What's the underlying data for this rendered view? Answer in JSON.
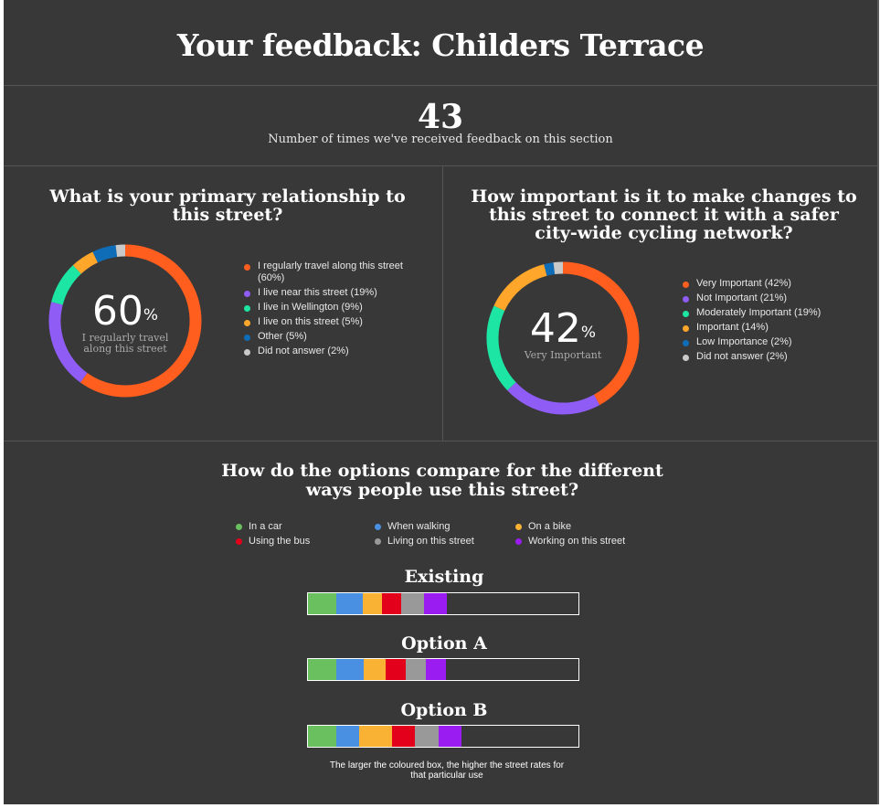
{
  "page": {
    "title": "Your feedback: Childers Terrace",
    "feedback_count": "43",
    "feedback_count_label": "Number of times we've received feedback on this section",
    "footnote": "The larger the coloured box, the higher the street rates for that particular use"
  },
  "chart_data": [
    {
      "type": "pie",
      "title": "What is your primary relationship to this street?",
      "center_value": "60",
      "center_unit": "%",
      "center_label": "I regularly travel along this street",
      "slices": [
        {
          "label": "I regularly travel along this street (60%)",
          "value": 60,
          "color": "#ff5e1f"
        },
        {
          "label": "I live near this street (19%)",
          "value": 19,
          "color": "#8f5cf5"
        },
        {
          "label": "I live in Wellington (9%)",
          "value": 9,
          "color": "#1de5a3"
        },
        {
          "label": "I live on this street (5%)",
          "value": 5,
          "color": "#ffa62b"
        },
        {
          "label": "Other (5%)",
          "value": 5,
          "color": "#0f6db8"
        },
        {
          "label": "Did not answer (2%)",
          "value": 2,
          "color": "#c9c9c9"
        }
      ]
    },
    {
      "type": "pie",
      "title": "How important is it to make changes to this street to connect it with a safer city-wide cycling network?",
      "center_value": "42",
      "center_unit": "%",
      "center_label": "Very Important",
      "slices": [
        {
          "label": "Very Important (42%)",
          "value": 42,
          "color": "#ff5e1f"
        },
        {
          "label": "Not Important (21%)",
          "value": 21,
          "color": "#8f5cf5"
        },
        {
          "label": "Moderately Important (19%)",
          "value": 19,
          "color": "#1de5a3"
        },
        {
          "label": "Important (14%)",
          "value": 14,
          "color": "#ffa62b"
        },
        {
          "label": "Low Importance (2%)",
          "value": 2,
          "color": "#0f6db8"
        },
        {
          "label": "Did not answer (2%)",
          "value": 2,
          "color": "#c9c9c9"
        }
      ]
    },
    {
      "type": "bar",
      "orientation": "stacked-horizontal",
      "title": "How do the options compare for the different ways people use this street?",
      "series": [
        {
          "name": "In a car",
          "color": "#6abf5e"
        },
        {
          "name": "Using the bus",
          "color": "#e3001b"
        },
        {
          "name": "When walking",
          "color": "#4a90e2"
        },
        {
          "name": "Living on this street",
          "color": "#999999"
        },
        {
          "name": "On a bike",
          "color": "#f9b233"
        },
        {
          "name": "Working on this street",
          "color": "#9b1cf0"
        }
      ],
      "legend_order": [
        "In a car",
        "When walking",
        "On a bike",
        "Using the bus",
        "Living on this street",
        "Working on this street"
      ],
      "stack_order": [
        "In a car",
        "When walking",
        "On a bike",
        "Using the bus",
        "Living on this street",
        "Working on this street"
      ],
      "max_total": 100,
      "options": [
        {
          "name": "Existing",
          "values": [
            10.5,
            9.8,
            7.1,
            7.1,
            8.4,
            8.4
          ]
        },
        {
          "name": "Option A",
          "values": [
            10.5,
            10.1,
            8.1,
            7.4,
            7.4,
            7.4
          ]
        },
        {
          "name": "Option B",
          "values": [
            10.5,
            8.4,
            12.2,
            8.4,
            8.8,
            8.4
          ]
        }
      ]
    }
  ]
}
